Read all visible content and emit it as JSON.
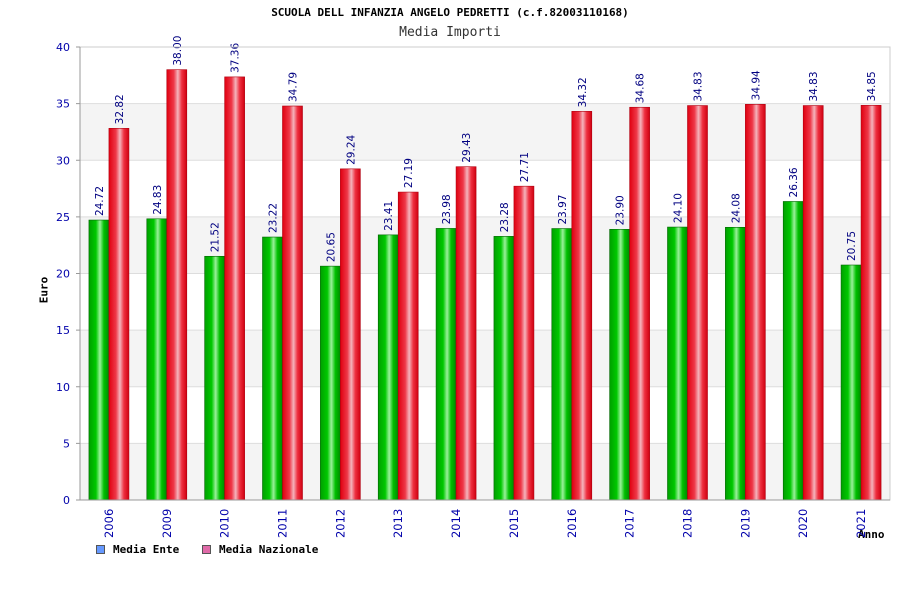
{
  "chart_data": {
    "type": "bar",
    "title": "SCUOLA DELL INFANZIA ANGELO PEDRETTI (c.f.82003110168)",
    "subtitle": "Media Importi",
    "xlabel": "Anno",
    "ylabel": "Euro",
    "ylim": [
      0,
      40
    ],
    "yticks": [
      "0",
      "5",
      "10",
      "15",
      "20",
      "25",
      "30",
      "35",
      "40"
    ],
    "grid": true,
    "legend_position": "bottom-left",
    "categories": [
      "2006",
      "2009",
      "2010",
      "2011",
      "2012",
      "2013",
      "2014",
      "2015",
      "2016",
      "2017",
      "2018",
      "2019",
      "2020",
      "2021"
    ],
    "series": [
      {
        "name": "Media Ente",
        "color": "#00b400",
        "legend_color": "#6699ff",
        "values": [
          24.72,
          24.83,
          21.52,
          23.22,
          20.65,
          23.41,
          23.98,
          23.28,
          23.97,
          23.9,
          24.1,
          24.08,
          26.36,
          20.75
        ],
        "labels": [
          "24.72",
          "24.83",
          "21.52",
          "23.22",
          "20.65",
          "23.41",
          "23.98",
          "23.28",
          "23.97",
          "23.90",
          "24.10",
          "24.08",
          "26.36",
          "20.75"
        ]
      },
      {
        "name": "Media Nazionale",
        "color": "#e8101e",
        "legend_color": "#e06aa8",
        "values": [
          32.82,
          38.0,
          37.36,
          34.79,
          29.24,
          27.19,
          29.43,
          27.71,
          34.32,
          34.68,
          34.83,
          34.94,
          34.83,
          34.85
        ],
        "labels": [
          "32.82",
          "38.00",
          "37.36",
          "34.79",
          "29.24",
          "27.19",
          "29.43",
          "27.71",
          "34.32",
          "34.68",
          "34.83",
          "34.94",
          "34.83",
          "34.85"
        ]
      }
    ]
  }
}
